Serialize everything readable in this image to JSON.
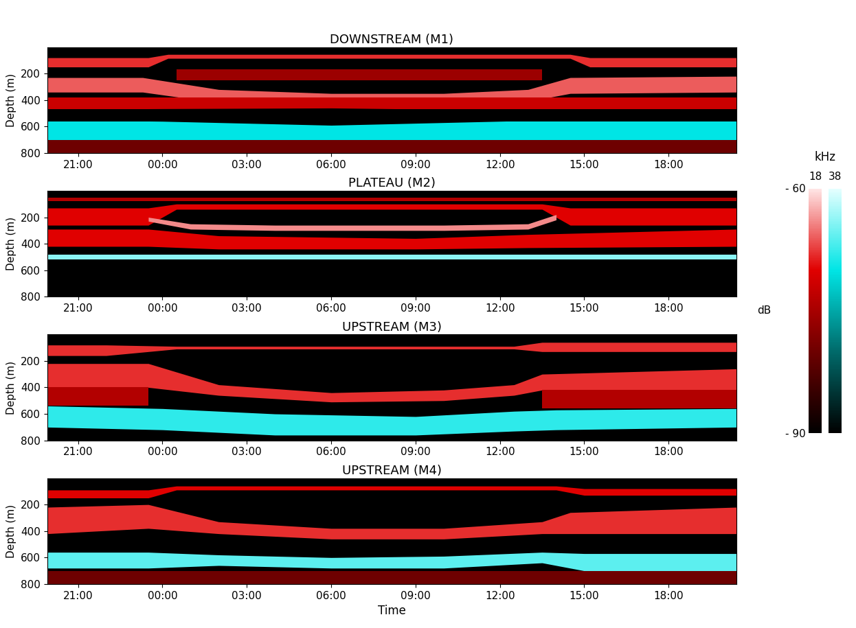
{
  "chart_data": [
    {
      "type": "echogram",
      "title": "DOWNSTREAM (M1)",
      "ylabel": "Depth (m)",
      "xlim": [
        19.9,
        44.4
      ],
      "ylim": [
        800,
        0
      ],
      "yticks": [
        200,
        400,
        600,
        800
      ],
      "xticks": [
        {
          "value": 21,
          "label": "21:00"
        },
        {
          "value": 24,
          "label": "00:00"
        },
        {
          "value": 27,
          "label": "03:00"
        },
        {
          "value": 30,
          "label": "06:00"
        },
        {
          "value": 33,
          "label": "09:00"
        },
        {
          "value": 36,
          "label": "12:00"
        },
        {
          "value": 39,
          "label": "15:00"
        },
        {
          "value": 42,
          "label": "18:00"
        }
      ],
      "layers": [
        {
          "frequency": 18,
          "level": -68,
          "times": [
            19.9,
            23.5,
            24.2,
            38.5,
            39.2,
            44.4
          ],
          "top": [
            80,
            80,
            55,
            55,
            80,
            80
          ],
          "bottom": [
            150,
            150,
            85,
            85,
            150,
            150
          ]
        },
        {
          "frequency": 18,
          "level": -66,
          "times": [
            19.9,
            23.3,
            26,
            30,
            34,
            37,
            38.5,
            44.4
          ],
          "top": [
            230,
            230,
            320,
            350,
            350,
            320,
            230,
            220
          ],
          "bottom": [
            340,
            340,
            420,
            440,
            440,
            410,
            350,
            340
          ]
        },
        {
          "frequency": 18,
          "level": -76,
          "times": [
            24.5,
            37.5
          ],
          "top": [
            170,
            170
          ],
          "bottom": [
            250,
            250
          ]
        },
        {
          "frequency": 18,
          "level": -72,
          "times": [
            19.9,
            44.4
          ],
          "top": [
            380,
            380
          ],
          "bottom": [
            470,
            470
          ]
        },
        {
          "frequency": 38,
          "level": -70,
          "times": [
            19.9,
            44.4
          ],
          "top": [
            560,
            560
          ],
          "bottom": [
            700,
            700
          ]
        },
        {
          "frequency": 18,
          "level": -80,
          "times": [
            19.9,
            44.4
          ],
          "top": [
            700,
            700
          ],
          "bottom": [
            800,
            800
          ]
        }
      ],
      "no_data": [
        {
          "times": [
            19.9,
            24,
            30,
            34,
            37,
            44.4
          ],
          "top": [
            470,
            465,
            460,
            470,
            475,
            470
          ],
          "bottom": [
            550,
            560,
            590,
            570,
            555,
            550
          ]
        }
      ]
    },
    {
      "type": "echogram",
      "title": "PLATEAU (M2)",
      "ylabel": "Depth (m)",
      "xlim": [
        19.9,
        44.4
      ],
      "ylim": [
        800,
        0
      ],
      "yticks": [
        200,
        400,
        600,
        800
      ],
      "xticks": [
        {
          "value": 21,
          "label": "21:00"
        },
        {
          "value": 24,
          "label": "00:00"
        },
        {
          "value": 27,
          "label": "03:00"
        },
        {
          "value": 30,
          "label": "06:00"
        },
        {
          "value": 33,
          "label": "09:00"
        },
        {
          "value": 36,
          "label": "12:00"
        },
        {
          "value": 39,
          "label": "15:00"
        },
        {
          "value": 42,
          "label": "18:00"
        }
      ],
      "layers": [
        {
          "frequency": 18,
          "level": -74,
          "times": [
            19.9,
            44.4
          ],
          "top": [
            50,
            50
          ],
          "bottom": [
            80,
            80
          ]
        },
        {
          "frequency": 18,
          "level": -70,
          "times": [
            19.9,
            23.5,
            24.5,
            37.5,
            38.5,
            44.4
          ],
          "top": [
            130,
            130,
            100,
            100,
            130,
            130
          ],
          "bottom": [
            260,
            260,
            140,
            140,
            260,
            260
          ]
        },
        {
          "frequency": 18,
          "level": -64,
          "times": [
            23.5,
            25,
            28,
            34,
            37,
            38
          ],
          "top": [
            200,
            250,
            260,
            260,
            250,
            180
          ],
          "bottom": [
            230,
            290,
            300,
            300,
            290,
            220
          ]
        },
        {
          "frequency": 18,
          "level": -70,
          "times": [
            19.9,
            23.5,
            26,
            33,
            37,
            44.4
          ],
          "top": [
            290,
            290,
            340,
            360,
            330,
            290
          ],
          "bottom": [
            420,
            420,
            440,
            440,
            430,
            420
          ]
        },
        {
          "frequency": 38,
          "level": -64,
          "times": [
            19.9,
            44.4
          ],
          "top": [
            480,
            480
          ],
          "bottom": [
            520,
            520
          ]
        }
      ],
      "no_data": [
        {
          "times": [
            19.9,
            44.4
          ],
          "top": [
            535,
            535
          ],
          "bottom": [
            800,
            800
          ]
        }
      ]
    },
    {
      "type": "echogram",
      "title": "UPSTREAM (M3)",
      "ylabel": "Depth (m)",
      "xlim": [
        19.9,
        44.4
      ],
      "ylim": [
        800,
        0
      ],
      "yticks": [
        200,
        400,
        600,
        800
      ],
      "xticks": [
        {
          "value": 21,
          "label": "21:00"
        },
        {
          "value": 24,
          "label": "00:00"
        },
        {
          "value": 27,
          "label": "03:00"
        },
        {
          "value": 30,
          "label": "06:00"
        },
        {
          "value": 33,
          "label": "09:00"
        },
        {
          "value": 36,
          "label": "12:00"
        },
        {
          "value": 39,
          "label": "15:00"
        },
        {
          "value": 42,
          "label": "18:00"
        }
      ],
      "layers": [
        {
          "frequency": 18,
          "level": -68,
          "times": [
            19.9,
            22,
            24.5,
            36.5,
            37.5,
            44.4
          ],
          "top": [
            80,
            80,
            90,
            90,
            60,
            60
          ],
          "bottom": [
            160,
            160,
            110,
            110,
            130,
            130
          ]
        },
        {
          "frequency": 18,
          "level": -68,
          "times": [
            19.9,
            23.5,
            26,
            30,
            34,
            36.5,
            37.5,
            44.4
          ],
          "top": [
            220,
            220,
            380,
            440,
            420,
            380,
            300,
            260
          ],
          "bottom": [
            400,
            400,
            460,
            510,
            500,
            460,
            420,
            420
          ]
        },
        {
          "frequency": 18,
          "level": -74,
          "times": [
            19.9,
            23.5
          ],
          "top": [
            400,
            400
          ],
          "bottom": [
            540,
            540
          ]
        },
        {
          "frequency": 18,
          "level": -74,
          "times": [
            37.5,
            44.4
          ],
          "top": [
            420,
            420
          ],
          "bottom": [
            560,
            560
          ]
        },
        {
          "frequency": 38,
          "level": -68,
          "times": [
            19.9,
            24,
            28,
            33,
            36.5,
            38,
            44.4
          ],
          "top": [
            540,
            560,
            600,
            620,
            580,
            570,
            560
          ],
          "bottom": [
            700,
            720,
            760,
            760,
            730,
            720,
            700
          ]
        }
      ],
      "no_data": []
    },
    {
      "type": "echogram",
      "title": "UPSTREAM (M4)",
      "ylabel": "Depth (m)",
      "xlabel": "Time",
      "xlim": [
        19.9,
        44.4
      ],
      "ylim": [
        800,
        0
      ],
      "yticks": [
        200,
        400,
        600,
        800
      ],
      "xticks": [
        {
          "value": 21,
          "label": "21:00"
        },
        {
          "value": 24,
          "label": "00:00"
        },
        {
          "value": 27,
          "label": "03:00"
        },
        {
          "value": 30,
          "label": "06:00"
        },
        {
          "value": 33,
          "label": "09:00"
        },
        {
          "value": 36,
          "label": "12:00"
        },
        {
          "value": 39,
          "label": "15:00"
        },
        {
          "value": 42,
          "label": "18:00"
        }
      ],
      "layers": [
        {
          "frequency": 18,
          "level": -70,
          "times": [
            19.9,
            23.5,
            24.5,
            38,
            39,
            44.4
          ],
          "top": [
            90,
            90,
            60,
            60,
            80,
            80
          ],
          "bottom": [
            150,
            150,
            90,
            90,
            130,
            130
          ]
        },
        {
          "frequency": 18,
          "level": -68,
          "times": [
            19.9,
            23.5,
            26,
            30,
            34,
            37.5,
            38.5,
            44.4
          ],
          "top": [
            220,
            200,
            330,
            380,
            380,
            330,
            260,
            220
          ],
          "bottom": [
            420,
            380,
            420,
            460,
            460,
            420,
            420,
            420
          ]
        },
        {
          "frequency": 38,
          "level": -66,
          "times": [
            19.9,
            23.5,
            26,
            30,
            34,
            37.5,
            39,
            44.4
          ],
          "top": [
            560,
            560,
            580,
            600,
            590,
            560,
            570,
            570
          ],
          "bottom": [
            680,
            680,
            660,
            680,
            680,
            640,
            700,
            700
          ]
        },
        {
          "frequency": 18,
          "level": -80,
          "times": [
            19.9,
            44.4
          ],
          "top": [
            700,
            700
          ],
          "bottom": [
            800,
            800
          ]
        }
      ],
      "no_data": []
    }
  ],
  "colorbar": {
    "title": "kHz",
    "label": "dB",
    "range": [
      -90,
      -60
    ],
    "ticks": [
      {
        "value": -60,
        "label": "- 60"
      },
      {
        "value": -90,
        "label": "- 90"
      }
    ],
    "channels": [
      {
        "frequency": 18,
        "colors": [
          "#000000",
          "#6e0000",
          "#e00000",
          "#ffe6e6"
        ]
      },
      {
        "frequency": 38,
        "colors": [
          "#000000",
          "#006a6a",
          "#00e5e5",
          "#e6ffff"
        ]
      }
    ]
  }
}
